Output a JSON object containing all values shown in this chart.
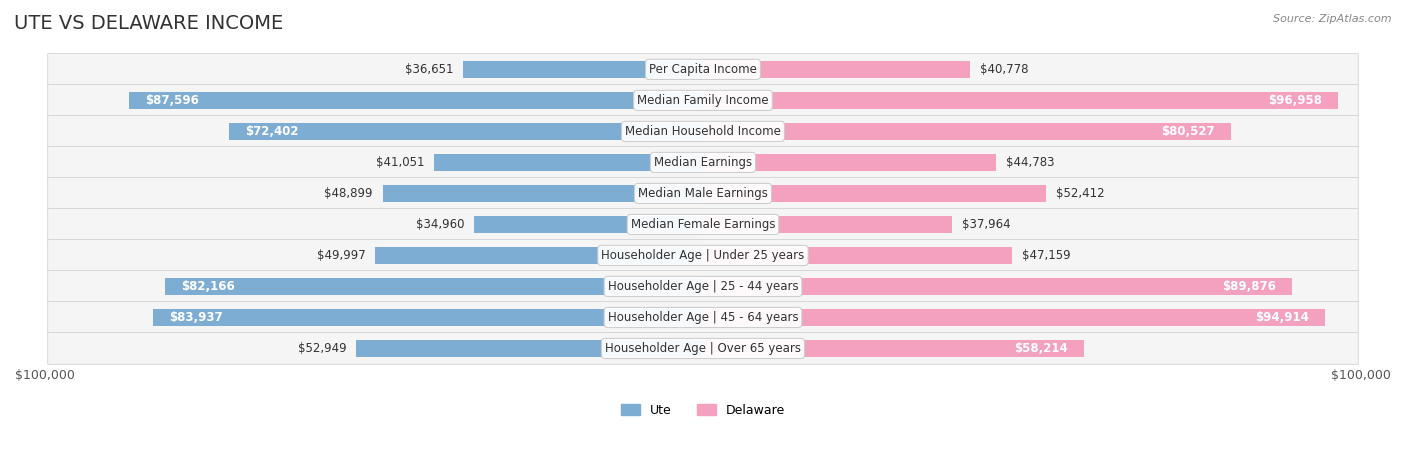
{
  "title": "UTE VS DELAWARE INCOME",
  "source": "Source: ZipAtlas.com",
  "categories": [
    "Per Capita Income",
    "Median Family Income",
    "Median Household Income",
    "Median Earnings",
    "Median Male Earnings",
    "Median Female Earnings",
    "Householder Age | Under 25 years",
    "Householder Age | 25 - 44 years",
    "Householder Age | 45 - 64 years",
    "Householder Age | Over 65 years"
  ],
  "ute_values": [
    36651,
    87596,
    72402,
    41051,
    48899,
    34960,
    49997,
    82166,
    83937,
    52949
  ],
  "delaware_values": [
    40778,
    96958,
    80527,
    44783,
    52412,
    37964,
    47159,
    89876,
    94914,
    58214
  ],
  "ute_labels": [
    "$36,651",
    "$87,596",
    "$72,402",
    "$41,051",
    "$48,899",
    "$34,960",
    "$49,997",
    "$82,166",
    "$83,937",
    "$52,949"
  ],
  "delaware_labels": [
    "$40,778",
    "$96,958",
    "$80,527",
    "$44,783",
    "$52,412",
    "$37,964",
    "$47,159",
    "$89,876",
    "$94,914",
    "$58,214"
  ],
  "ute_color": "#7eadd4",
  "ute_color_dark": "#5b9dc7",
  "delaware_color": "#f4a0bf",
  "delaware_color_dark": "#ee6fa0",
  "max_value": 100000,
  "bar_height": 0.55,
  "row_bg_color": "#f0f0f0",
  "row_bg_color_alt": "#e8e8e8",
  "title_fontsize": 14,
  "label_fontsize": 8.5,
  "category_fontsize": 8.5,
  "axis_label": "$100,000",
  "background_color": "#ffffff"
}
